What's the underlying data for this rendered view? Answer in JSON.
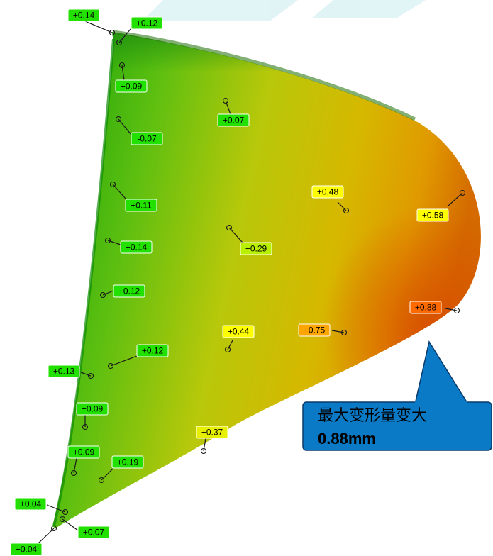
{
  "labels": [
    {
      "id": "l1",
      "text": "+0.14",
      "color": "#22e000"
    },
    {
      "id": "l2",
      "text": "+0.12",
      "color": "#22e000"
    },
    {
      "id": "l3",
      "text": "+0.09",
      "color": "#22e000"
    },
    {
      "id": "l4",
      "text": "+0.07",
      "color": "#22e000"
    },
    {
      "id": "l5",
      "text": "-0.07",
      "color": "#22e000"
    },
    {
      "id": "l6",
      "text": "+0.48",
      "color": "#ffff00"
    },
    {
      "id": "l7",
      "text": "+0.58",
      "color": "#ffff00"
    },
    {
      "id": "l8",
      "text": "+0.11",
      "color": "#22e000"
    },
    {
      "id": "l9",
      "text": "+0.14",
      "color": "#22e000"
    },
    {
      "id": "l10",
      "text": "+0.29",
      "color": "#b8f000"
    },
    {
      "id": "l11",
      "text": "+0.12",
      "color": "#22e000"
    },
    {
      "id": "l12",
      "text": "+0.88",
      "color": "#ff6a00"
    },
    {
      "id": "l13",
      "text": "+0.44",
      "color": "#ffff00"
    },
    {
      "id": "l14",
      "text": "+0.75",
      "color": "#ffa500"
    },
    {
      "id": "l15",
      "text": "+0.12",
      "color": "#22e000"
    },
    {
      "id": "l16",
      "text": "+0.13",
      "color": "#22e000"
    },
    {
      "id": "l17",
      "text": "+0.09",
      "color": "#22e000"
    },
    {
      "id": "l18",
      "text": "+0.37",
      "color": "#e6f000"
    },
    {
      "id": "l19",
      "text": "+0.09",
      "color": "#22e000"
    },
    {
      "id": "l20",
      "text": "+0.19",
      "color": "#22e000"
    },
    {
      "id": "l21",
      "text": "+0.04",
      "color": "#22e000"
    },
    {
      "id": "l22",
      "text": "+0.07",
      "color": "#22e000"
    },
    {
      "id": "l23",
      "text": "+0.04",
      "color": "#22e000"
    }
  ],
  "callout": {
    "line1": "最大变形量变大",
    "line2": "0.88mm",
    "fill": "#0a7ac7"
  },
  "colors": {
    "deviation_low": "#1fa80a",
    "deviation_mid": "#d4c800",
    "deviation_high": "#d85a00"
  }
}
